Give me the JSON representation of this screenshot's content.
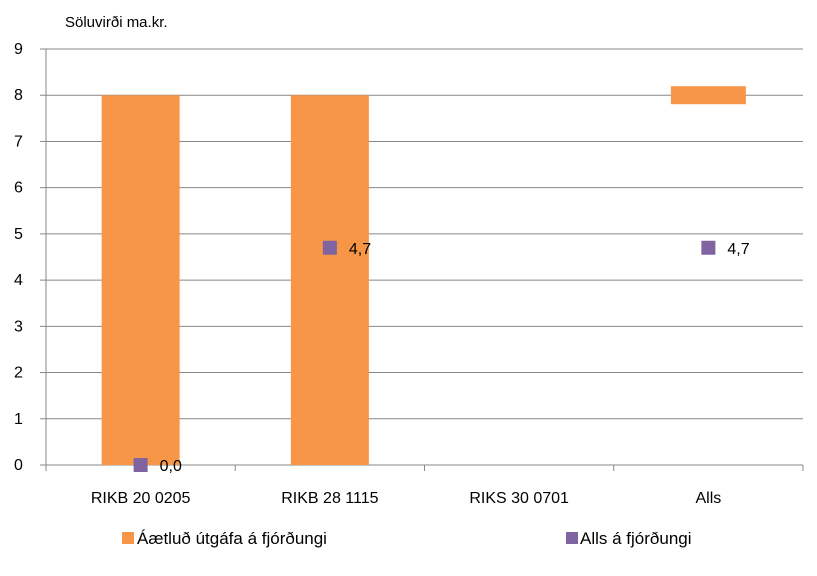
{
  "chart_data": {
    "type": "bar",
    "ylabel": "Söluvirði ma.kr.",
    "ylim": [
      0,
      9
    ],
    "yticks": [
      0,
      1,
      2,
      3,
      4,
      5,
      6,
      7,
      8,
      9
    ],
    "grid": true,
    "categories": [
      "RIKB 20 0205",
      "RIKB 28 1115",
      "RIKS 30 0701",
      "Alls"
    ],
    "series": [
      {
        "name": "Áætluð útgáfa á fjórðungi",
        "type": "bar",
        "color": "#F79646",
        "values": [
          8,
          8,
          0,
          8
        ],
        "display": [
          "bar",
          "bar",
          "bar",
          "marker"
        ]
      },
      {
        "name": "Alls á fjórðungi",
        "type": "scatter",
        "color": "#8064A2",
        "marker": "square",
        "values": [
          0.0,
          4.7,
          null,
          4.7
        ],
        "labels": [
          "0,0",
          "4,7",
          "",
          "4,7"
        ]
      }
    ],
    "legend_position": "bottom"
  }
}
